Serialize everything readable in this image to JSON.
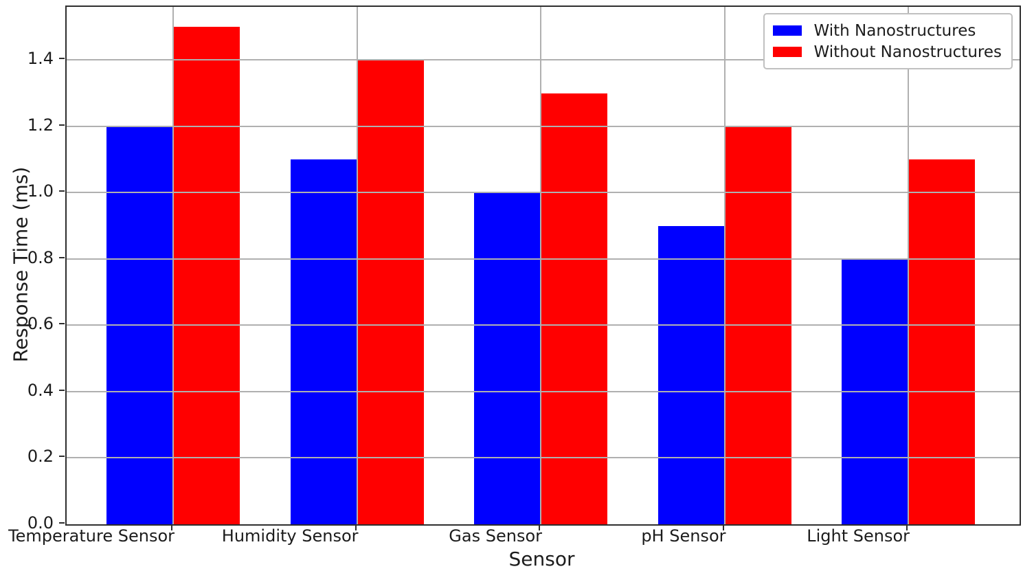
{
  "chart_data": {
    "type": "bar",
    "title": "",
    "xlabel": "Sensor",
    "ylabel": "Response Time (ms)",
    "categories": [
      "Temperature Sensor",
      "Humidity Sensor",
      "Gas Sensor",
      "pH Sensor",
      "Light Sensor"
    ],
    "series": [
      {
        "name": "With Nanostructures",
        "color": "#0000ff",
        "values": [
          1.2,
          1.1,
          1.0,
          0.9,
          0.8
        ]
      },
      {
        "name": "Without Nanostructures",
        "color": "#ff0000",
        "values": [
          1.5,
          1.4,
          1.3,
          1.2,
          1.1
        ]
      }
    ],
    "ylim": [
      0,
      1.56
    ],
    "yticks": [
      0.0,
      0.2,
      0.4,
      0.6,
      0.8,
      1.0,
      1.2,
      1.4
    ],
    "ytick_labels": [
      "0.0",
      "0.2",
      "0.4",
      "0.6",
      "0.8",
      "1.0",
      "1.2",
      "1.4"
    ],
    "grid": true,
    "grid_color": "#b0b0b0",
    "legend_position": "upper right"
  }
}
